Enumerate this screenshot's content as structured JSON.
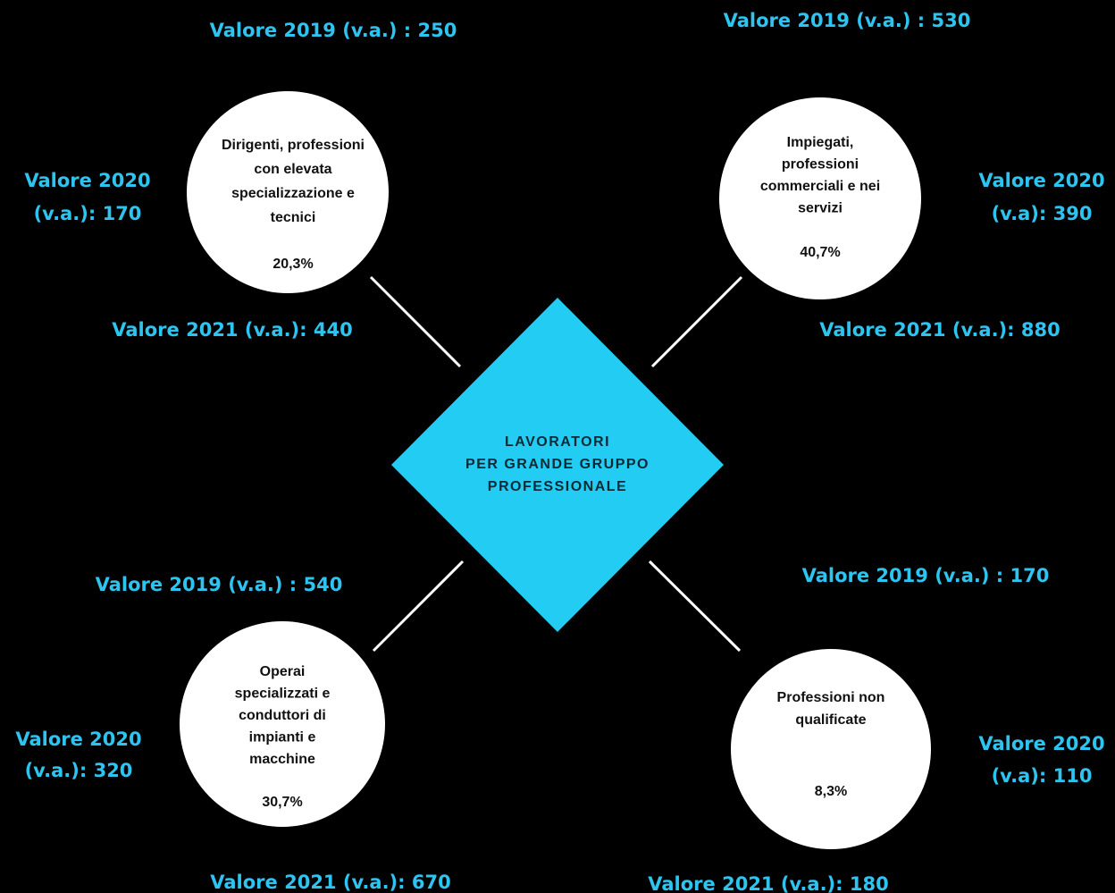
{
  "center": {
    "title_lines": [
      "LAVORATORI",
      "PER GRANDE GRUPPO",
      "PROFESSIONALE"
    ]
  },
  "nodes": [
    {
      "label_lines": [
        "Dirigenti, professioni",
        "con elevata",
        "specializzazione e",
        "tecnici"
      ],
      "percent": "20,3%",
      "value_2019": "Valore 2019 (v.a.) : 250",
      "value_2020": [
        "Valore 2020",
        "(v.a.): 170"
      ],
      "value_2021": "Valore 2021 (v.a.): 440"
    },
    {
      "label_lines": [
        "Impiegati,",
        "professioni",
        "commerciali e nei",
        "servizi"
      ],
      "percent": "40,7%",
      "value_2019": "Valore 2019 (v.a.) : 530",
      "value_2020": [
        "Valore 2020",
        "(v.a): 390"
      ],
      "value_2021": "Valore 2021 (v.a.): 880"
    },
    {
      "label_lines": [
        "Operai",
        "specializzati e",
        "conduttori di",
        "impianti e",
        "macchine"
      ],
      "percent": "30,7%",
      "value_2019": "Valore 2019 (v.a.) : 540",
      "value_2020": [
        "Valore 2020",
        "(v.a.): 320"
      ],
      "value_2021": "Valore 2021 (v.a.): 670"
    },
    {
      "label_lines": [
        "Professioni non",
        "qualificate"
      ],
      "percent": "8,3%",
      "value_2019": "Valore 2019 (v.a.) : 170",
      "value_2020": [
        "Valore 2020",
        "(v.a): 110"
      ],
      "value_2021": "Valore 2021 (v.a.): 180"
    }
  ]
}
